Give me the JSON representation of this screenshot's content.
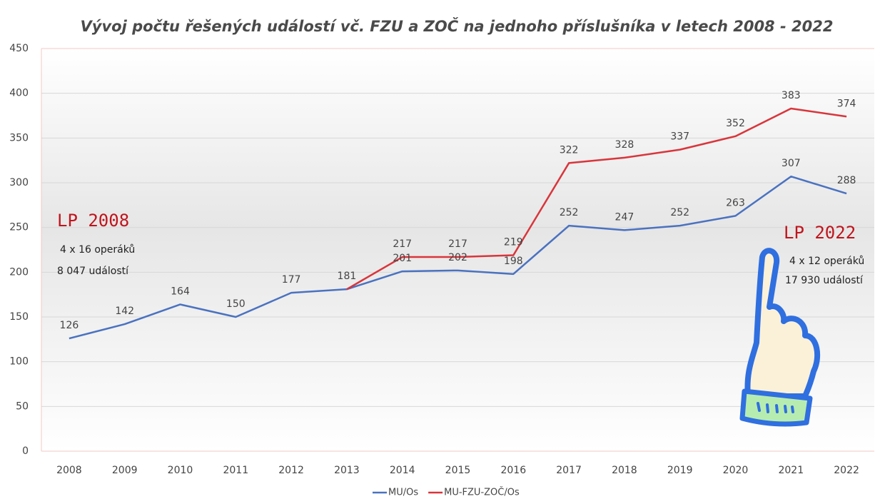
{
  "chart_data": {
    "type": "line",
    "title": "Vývoj počtu řešených událostí  vč. FZU a ZOČ na jednoho příslušníka v letech 2008 - 2022",
    "categories": [
      "2008",
      "2009",
      "2010",
      "2011",
      "2012",
      "2013",
      "2014",
      "2015",
      "2016",
      "2017",
      "2018",
      "2019",
      "2020",
      "2021",
      "2022"
    ],
    "series": [
      {
        "name": "MU/Os",
        "color": "#4a72c0",
        "values": [
          126,
          142,
          164,
          150,
          177,
          181,
          201,
          202,
          198,
          252,
          247,
          252,
          263,
          307,
          288
        ]
      },
      {
        "name": "MU-FZU-ZOČ/Os",
        "color": "#d9353b",
        "values": [
          null,
          null,
          null,
          null,
          null,
          181,
          217,
          217,
          219,
          322,
          328,
          337,
          352,
          383,
          374
        ]
      }
    ],
    "ylim": [
      0,
      450
    ],
    "yticks": [
      0,
      50,
      100,
      150,
      200,
      250,
      300,
      350,
      400,
      450
    ],
    "grid": true,
    "annotations": {
      "left": {
        "title": "LP 2008",
        "line1": "4 x 16 operáků",
        "line2": "8 047 událostí"
      },
      "right": {
        "title": "LP 2022",
        "line1": "4 x 12 operáků",
        "line2": "17 930 událostí"
      }
    }
  }
}
